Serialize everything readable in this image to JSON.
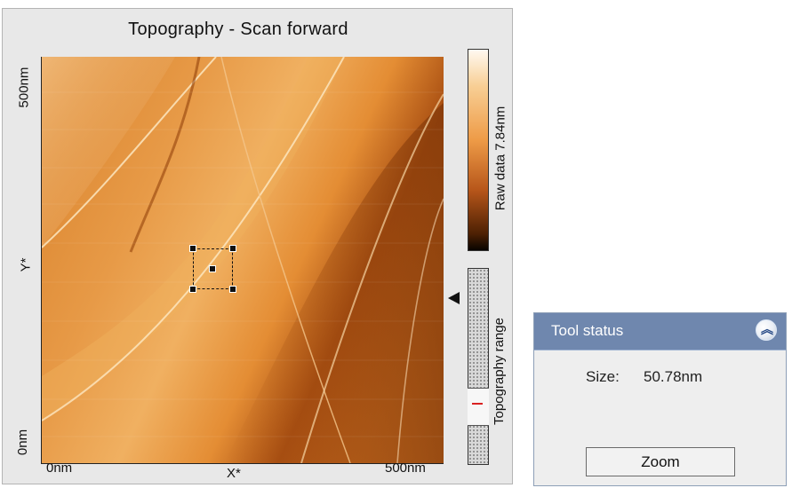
{
  "scan_view": {
    "title": "Topography - Scan forward",
    "y_axis": {
      "top": "500nm",
      "middle": "Y*",
      "bottom": "0nm"
    },
    "x_axis": {
      "left": "0nm",
      "middle": "X*",
      "right": "500nm"
    },
    "colorbar_label": "Raw data 7.84nm",
    "range_label": "Topography range",
    "icons": {
      "marker": "selection-square",
      "pointer": "left-triangle-icon"
    },
    "colors": {
      "surface_light": "#f2bb77",
      "surface_dark": "#8f4310",
      "range_line": "#d92222"
    }
  },
  "tool_status": {
    "title": "Tool status",
    "size_label": "Size:",
    "size_value": "50.78nm",
    "zoom_label": "Zoom",
    "collapse_icon": "double-chevron-up-icon"
  }
}
